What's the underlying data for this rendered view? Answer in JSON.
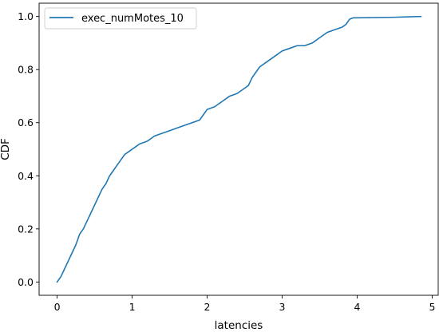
{
  "chart_data": {
    "type": "line",
    "title": "",
    "xlabel": "latencies",
    "ylabel": "CDF",
    "xlim": [
      -0.24,
      5.08
    ],
    "ylim": [
      -0.05,
      1.05
    ],
    "x_ticks": [
      0,
      1,
      2,
      3,
      4,
      5
    ],
    "y_ticks": [
      0.0,
      0.2,
      0.4,
      0.6,
      0.8,
      1.0
    ],
    "x_tick_labels": [
      "0",
      "1",
      "2",
      "3",
      "4",
      "5"
    ],
    "y_tick_labels": [
      "0.0",
      "0.2",
      "0.4",
      "0.6",
      "0.8",
      "1.0"
    ],
    "grid": false,
    "legend_position": "top-left",
    "series": [
      {
        "name": "exec_numMotes_10",
        "color": "#1f77b4",
        "x": [
          0.0,
          0.05,
          0.1,
          0.15,
          0.2,
          0.25,
          0.3,
          0.35,
          0.4,
          0.45,
          0.5,
          0.55,
          0.6,
          0.65,
          0.7,
          0.75,
          0.8,
          0.85,
          0.9,
          0.95,
          1.0,
          1.05,
          1.1,
          1.2,
          1.3,
          1.4,
          1.5,
          1.6,
          1.7,
          1.8,
          1.9,
          1.95,
          2.0,
          2.1,
          2.2,
          2.3,
          2.4,
          2.5,
          2.55,
          2.6,
          2.65,
          2.7,
          2.8,
          2.9,
          3.0,
          3.1,
          3.2,
          3.3,
          3.4,
          3.5,
          3.6,
          3.7,
          3.8,
          3.85,
          3.9,
          3.95,
          4.0,
          4.5,
          4.85
        ],
        "y": [
          0.0,
          0.02,
          0.05,
          0.08,
          0.11,
          0.14,
          0.18,
          0.2,
          0.23,
          0.26,
          0.29,
          0.32,
          0.35,
          0.37,
          0.4,
          0.42,
          0.44,
          0.46,
          0.48,
          0.49,
          0.5,
          0.51,
          0.52,
          0.53,
          0.55,
          0.56,
          0.57,
          0.58,
          0.59,
          0.6,
          0.61,
          0.63,
          0.65,
          0.66,
          0.68,
          0.7,
          0.71,
          0.73,
          0.74,
          0.77,
          0.79,
          0.81,
          0.83,
          0.85,
          0.87,
          0.88,
          0.89,
          0.89,
          0.9,
          0.92,
          0.94,
          0.95,
          0.96,
          0.97,
          0.99,
          0.995,
          0.995,
          0.997,
          1.0
        ]
      }
    ]
  }
}
